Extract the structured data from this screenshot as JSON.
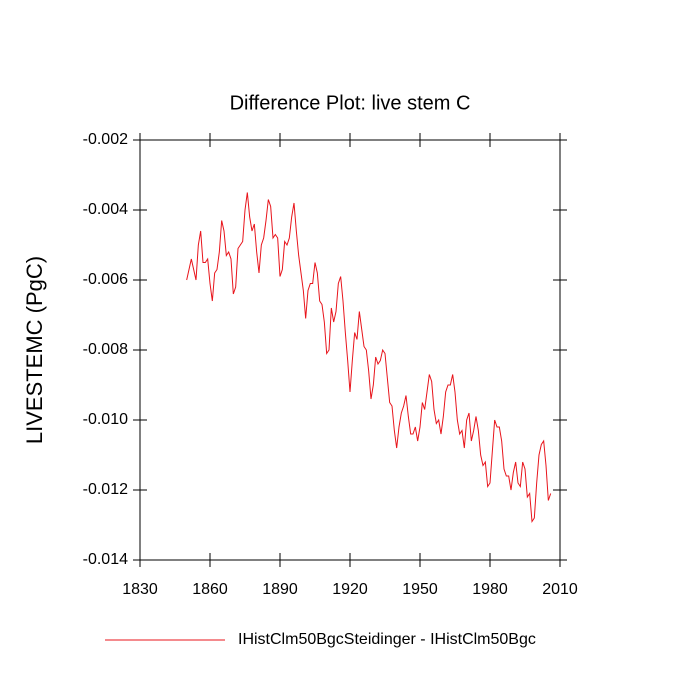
{
  "chart_data": {
    "type": "line",
    "title": "Difference Plot: live stem C",
    "y_label": "LIVESTEMC  (PgC)",
    "x": [
      1850,
      1851,
      1852,
      1853,
      1854,
      1855,
      1856,
      1857,
      1858,
      1859,
      1860,
      1861,
      1862,
      1863,
      1864,
      1865,
      1866,
      1867,
      1868,
      1869,
      1870,
      1871,
      1872,
      1873,
      1874,
      1875,
      1876,
      1877,
      1878,
      1879,
      1880,
      1881,
      1882,
      1883,
      1884,
      1885,
      1886,
      1887,
      1888,
      1889,
      1890,
      1891,
      1892,
      1893,
      1894,
      1895,
      1896,
      1897,
      1898,
      1899,
      1900,
      1901,
      1902,
      1903,
      1904,
      1905,
      1906,
      1907,
      1908,
      1909,
      1910,
      1911,
      1912,
      1913,
      1914,
      1915,
      1916,
      1917,
      1918,
      1919,
      1920,
      1921,
      1922,
      1923,
      1924,
      1925,
      1926,
      1927,
      1928,
      1929,
      1930,
      1931,
      1932,
      1933,
      1934,
      1935,
      1936,
      1937,
      1938,
      1939,
      1940,
      1941,
      1942,
      1943,
      1944,
      1945,
      1946,
      1947,
      1948,
      1949,
      1950,
      1951,
      1952,
      1953,
      1954,
      1955,
      1956,
      1957,
      1958,
      1959,
      1960,
      1961,
      1962,
      1963,
      1964,
      1965,
      1966,
      1967,
      1968,
      1969,
      1970,
      1971,
      1972,
      1973,
      1974,
      1975,
      1976,
      1977,
      1978,
      1979,
      1980,
      1981,
      1982,
      1983,
      1984,
      1985,
      1986,
      1987,
      1988,
      1989,
      1990,
      1991,
      1992,
      1993,
      1994,
      1995,
      1996,
      1997,
      1998,
      1999,
      2000,
      2001,
      2002,
      2003,
      2004,
      2005,
      2006
    ],
    "series": [
      {
        "name": "IHistClm50BgcSteidinger - IHistClm50Bgc",
        "color": "#e8141b",
        "values": [
          -0.006,
          -0.0057,
          -0.0054,
          -0.0057,
          -0.006,
          -0.005,
          -0.0046,
          -0.0055,
          -0.0055,
          -0.0054,
          -0.0061,
          -0.0066,
          -0.0058,
          -0.0057,
          -0.0052,
          -0.0043,
          -0.0046,
          -0.0053,
          -0.0052,
          -0.0054,
          -0.0064,
          -0.0062,
          -0.0051,
          -0.005,
          -0.0049,
          -0.004,
          -0.0035,
          -0.0042,
          -0.0046,
          -0.0044,
          -0.0052,
          -0.0058,
          -0.005,
          -0.0048,
          -0.0043,
          -0.0037,
          -0.0039,
          -0.0048,
          -0.0047,
          -0.0048,
          -0.0059,
          -0.0057,
          -0.0049,
          -0.005,
          -0.0048,
          -0.0042,
          -0.0038,
          -0.0046,
          -0.0053,
          -0.0058,
          -0.0063,
          -0.0071,
          -0.0063,
          -0.0061,
          -0.0061,
          -0.0055,
          -0.0058,
          -0.0066,
          -0.0067,
          -0.0072,
          -0.0081,
          -0.008,
          -0.0068,
          -0.0072,
          -0.0069,
          -0.0061,
          -0.0059,
          -0.0066,
          -0.0075,
          -0.0083,
          -0.0092,
          -0.0083,
          -0.0075,
          -0.0077,
          -0.0069,
          -0.0074,
          -0.0079,
          -0.008,
          -0.0086,
          -0.0094,
          -0.009,
          -0.0082,
          -0.0084,
          -0.0083,
          -0.008,
          -0.0081,
          -0.0088,
          -0.0095,
          -0.0096,
          -0.0103,
          -0.0108,
          -0.0102,
          -0.0098,
          -0.0096,
          -0.0093,
          -0.0099,
          -0.0104,
          -0.0104,
          -0.0102,
          -0.0106,
          -0.0102,
          -0.0095,
          -0.0097,
          -0.0092,
          -0.0087,
          -0.0089,
          -0.0097,
          -0.0101,
          -0.01,
          -0.0104,
          -0.0099,
          -0.0092,
          -0.009,
          -0.009,
          -0.0087,
          -0.0092,
          -0.01,
          -0.0104,
          -0.0103,
          -0.0108,
          -0.01,
          -0.0098,
          -0.0106,
          -0.0103,
          -0.0099,
          -0.0103,
          -0.011,
          -0.0113,
          -0.0112,
          -0.0119,
          -0.0118,
          -0.0109,
          -0.01,
          -0.0102,
          -0.0102,
          -0.0106,
          -0.0114,
          -0.0116,
          -0.0116,
          -0.012,
          -0.0115,
          -0.0112,
          -0.0118,
          -0.0119,
          -0.0112,
          -0.0114,
          -0.0122,
          -0.0121,
          -0.0129,
          -0.0128,
          -0.0118,
          -0.011,
          -0.0107,
          -0.0106,
          -0.0113,
          -0.0123,
          -0.0121
        ]
      }
    ],
    "xlim": [
      1830,
      2010
    ],
    "xticks": [
      1830,
      1860,
      1890,
      1920,
      1950,
      1980,
      2010
    ],
    "ylim": [
      -0.014,
      -0.002
    ],
    "yticks": [
      -0.014,
      -0.012,
      {
        "value": -0.01,
        "label": "-0.010"
      },
      -0.008,
      -0.006,
      -0.004,
      -0.002
    ]
  }
}
